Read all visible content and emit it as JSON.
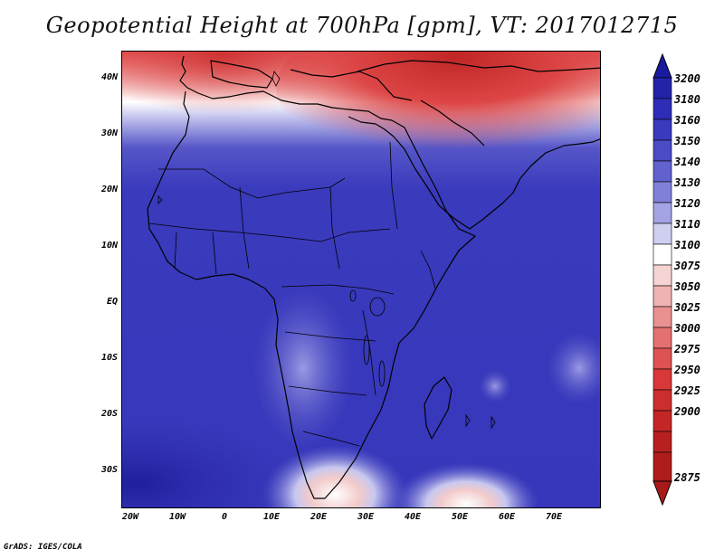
{
  "title": "Geopotential Height at 700hPa [gpm], VT: 2017012715",
  "footer": "GrADS: IGES/COLA",
  "lat_labels": [
    "40N",
    "30N",
    "20N",
    "10N",
    "EQ",
    "10S",
    "20S",
    "30S"
  ],
  "lon_labels": [
    "20W",
    "10W",
    "0",
    "10E",
    "20E",
    "30E",
    "40E",
    "50E",
    "60E",
    "70E"
  ],
  "colorbar": {
    "levels": [
      "3200",
      "3180",
      "3160",
      "3150",
      "3140",
      "3130",
      "3120",
      "3110",
      "3100",
      "3075",
      "3050",
      "3025",
      "3000",
      "2975",
      "2950",
      "2925",
      "2900",
      "2875"
    ],
    "colors": [
      "#1a1aa0",
      "#2323a8",
      "#2d2db8",
      "#3a3abf",
      "#4b4bc6",
      "#6262ce",
      "#8080d8",
      "#a4a4e4",
      "#cfcff0",
      "#ffffff",
      "#f6d4d4",
      "#f0b2b2",
      "#ea9090",
      "#e47070",
      "#df5252",
      "#d83838",
      "#c42626",
      "#a81a1a"
    ]
  }
}
